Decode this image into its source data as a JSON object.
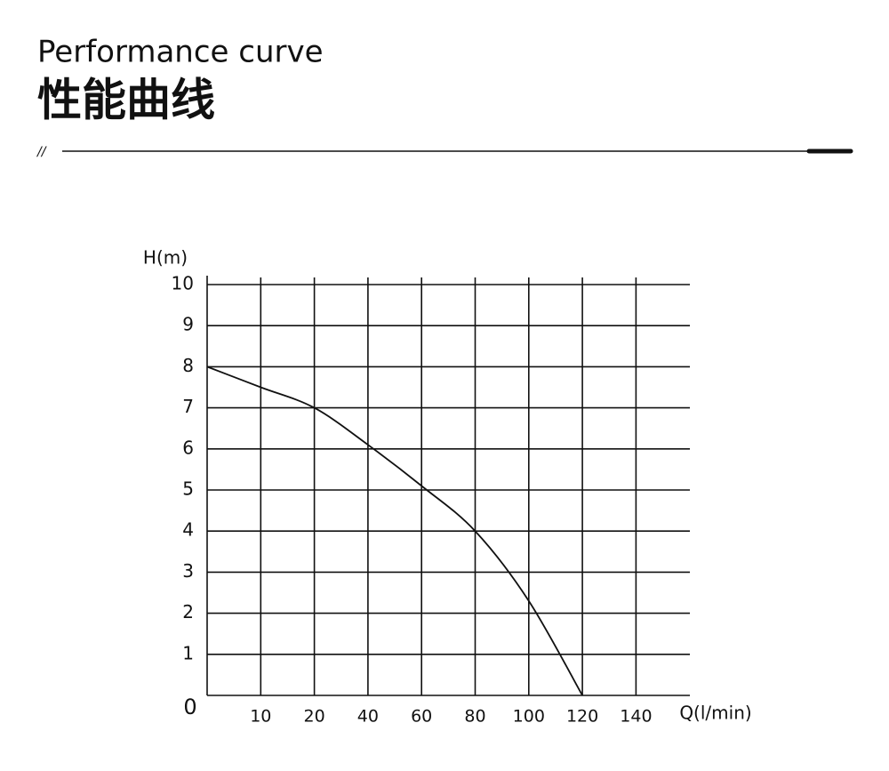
{
  "chart_data": {
    "type": "line",
    "title": "Performance curve",
    "subtitle": "性能曲线",
    "marker": "//",
    "x_label": "Q(l/min)",
    "y_label": "H(m)",
    "origin_label": 0,
    "x": [
      0,
      10,
      20,
      40,
      60,
      80,
      100,
      120
    ],
    "values": [
      8,
      7.5,
      7,
      6.1,
      5.1,
      4,
      2.3,
      0
    ],
    "color": "#111111",
    "xticks": [
      10,
      20,
      40,
      60,
      80,
      100,
      120,
      140
    ],
    "ylim": [
      0,
      10
    ],
    "yticks": [
      1,
      2,
      3,
      4,
      5,
      6,
      7,
      8,
      9,
      10
    ],
    "grid": true
  }
}
